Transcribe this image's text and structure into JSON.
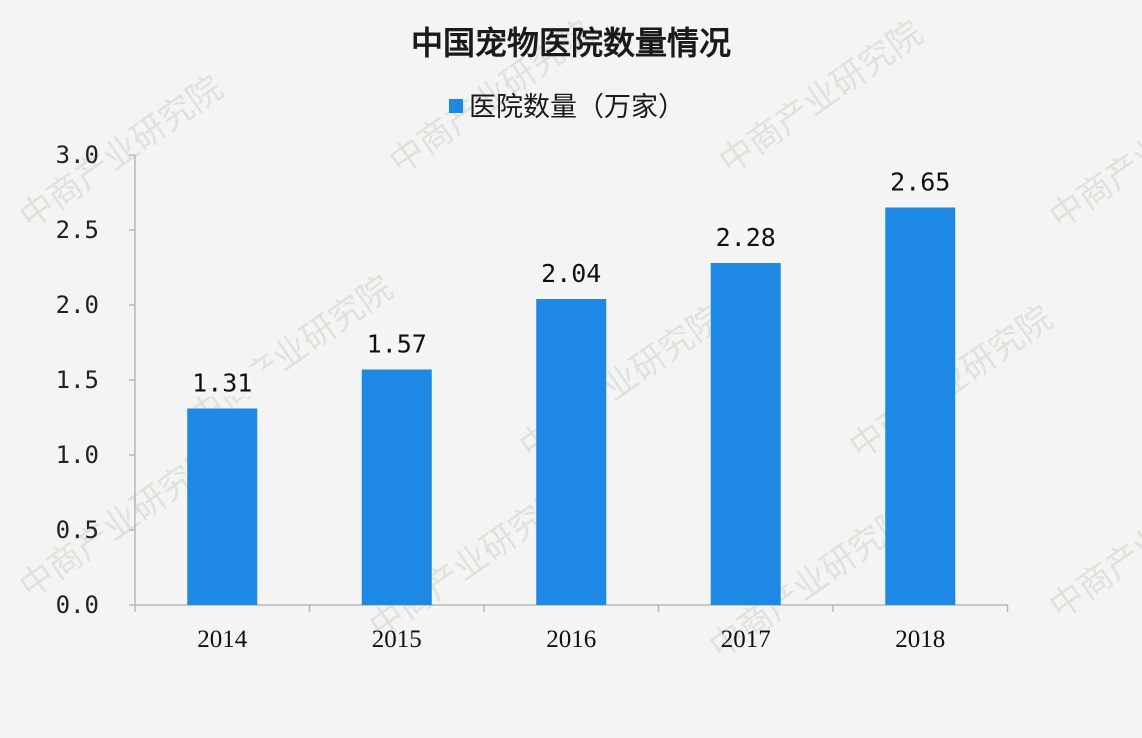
{
  "chart_data": {
    "type": "bar",
    "title": "中国宠物医院数量情况",
    "categories": [
      "2014",
      "2015",
      "2016",
      "2017",
      "2018"
    ],
    "series": [
      {
        "name": "医院数量（万家）",
        "values": [
          1.31,
          1.57,
          2.04,
          2.28,
          2.65
        ],
        "data_labels": [
          "1.31",
          "1.57",
          "2.04",
          "2.28",
          "2.65"
        ]
      }
    ],
    "yticks": [
      "0.0",
      "0.5",
      "1.0",
      "1.5",
      "2.0",
      "2.5",
      "3.0"
    ],
    "ylim": [
      0,
      3.0
    ],
    "grid": false,
    "legend_position": "top-center",
    "bar_color": "#1e88e5"
  },
  "watermark": {
    "text": "中商产业研究院"
  }
}
